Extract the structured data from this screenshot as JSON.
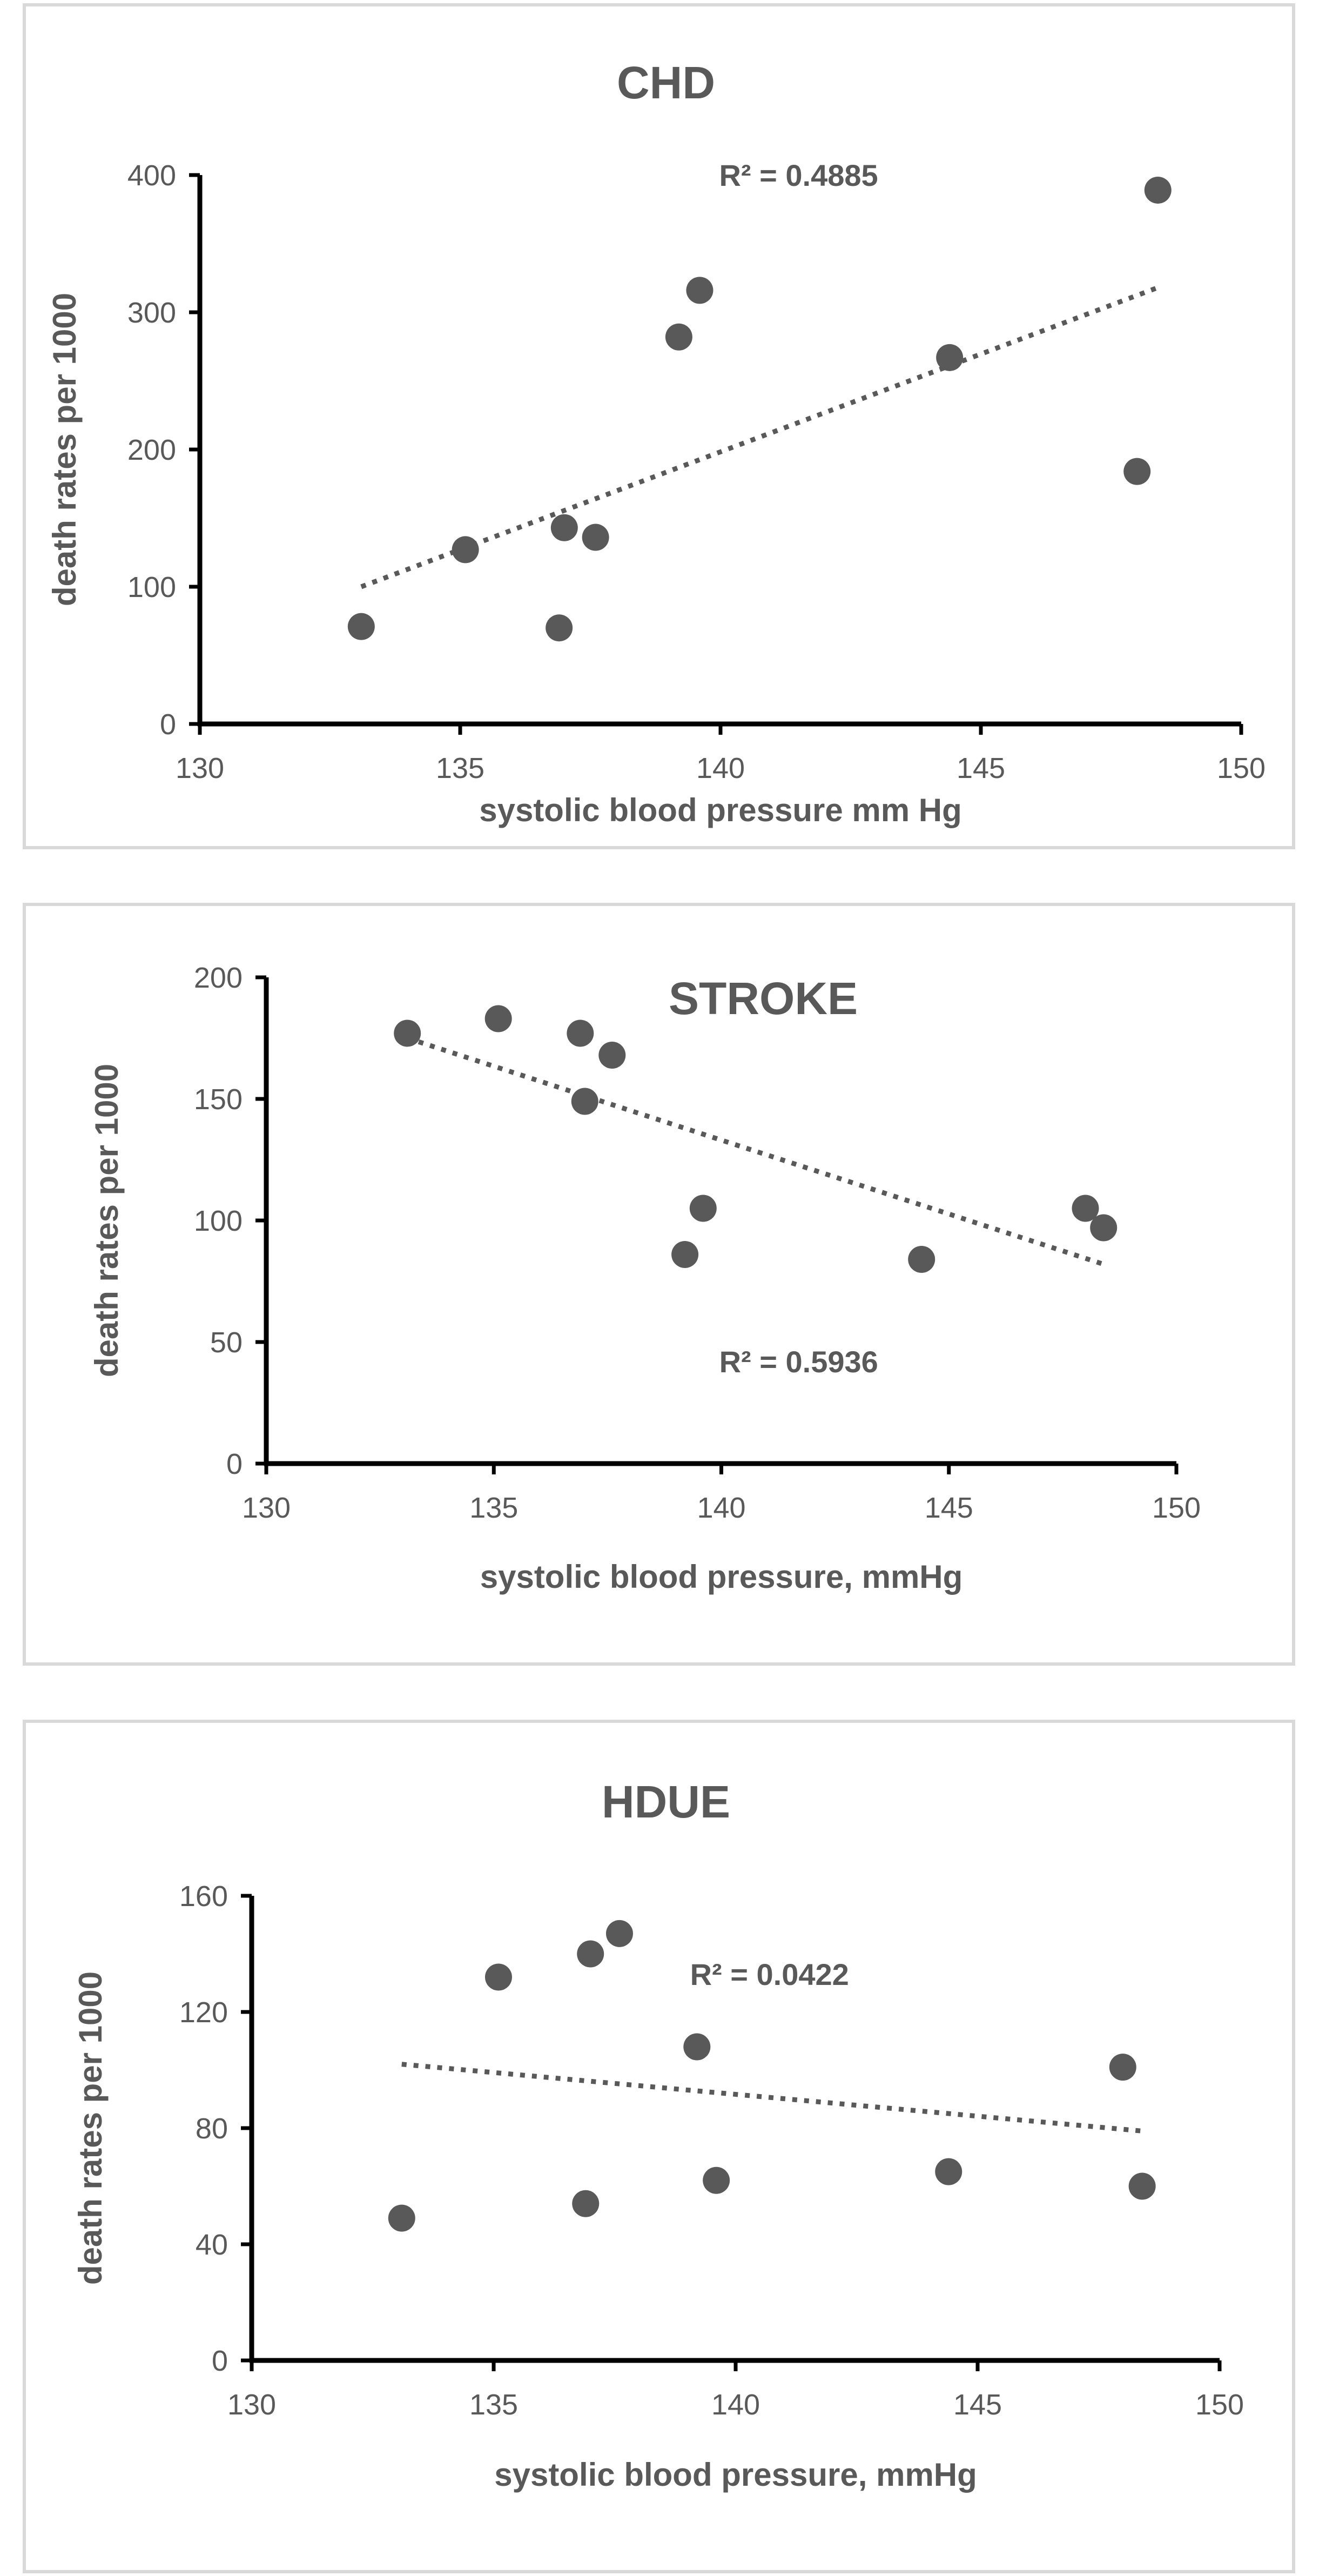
{
  "chart_data": [
    {
      "type": "scatter",
      "title": "CHD",
      "xlabel": "systolic blood pressure mm Hg",
      "ylabel": "death rates per 1000",
      "xlim": [
        130,
        150
      ],
      "ylim": [
        0,
        400
      ],
      "xticks": [
        130,
        135,
        140,
        145,
        150
      ],
      "yticks": [
        0,
        100,
        200,
        300,
        400
      ],
      "series": [
        {
          "name": "CHD",
          "x": [
            133.1,
            135.1,
            136.9,
            137.0,
            137.6,
            139.2,
            139.6,
            144.4,
            148.0,
            148.4
          ],
          "y": [
            71,
            127,
            70,
            143,
            136,
            282,
            316,
            267,
            184,
            389
          ]
        }
      ],
      "trendline": {
        "style": "dotted",
        "x": [
          133.1,
          148.4
        ],
        "y": [
          100,
          318
        ]
      },
      "r_squared_label": "R² = 0.4885",
      "r_squared_anchor": [
        141.5,
        400
      ]
    },
    {
      "type": "scatter",
      "title": "STROKE",
      "xlabel": "systolic blood pressure, mmHg",
      "ylabel": "death rates per 1000",
      "xlim": [
        130,
        150
      ],
      "ylim": [
        0,
        200
      ],
      "xticks": [
        130,
        135,
        140,
        145,
        150
      ],
      "yticks": [
        0,
        50,
        100,
        150,
        200
      ],
      "series": [
        {
          "name": "STROKE",
          "x": [
            133.1,
            135.1,
            136.9,
            137.0,
            137.6,
            139.2,
            139.6,
            144.4,
            148.0,
            148.4
          ],
          "y": [
            177,
            183,
            177,
            149,
            168,
            86,
            105,
            84,
            105,
            97
          ]
        }
      ],
      "trendline": {
        "style": "dotted",
        "x": [
          133.1,
          148.4
        ],
        "y": [
          175,
          82
        ]
      },
      "r_squared_label": "R² = 0.5936",
      "r_squared_anchor": [
        141.7,
        42
      ]
    },
    {
      "type": "scatter",
      "title": "HDUE",
      "xlabel": "systolic blood pressure, mmHg",
      "ylabel": "death rates per 1000",
      "xlim": [
        130,
        150
      ],
      "ylim": [
        0,
        160
      ],
      "xticks": [
        130,
        135,
        140,
        145,
        150
      ],
      "yticks": [
        0,
        40,
        80,
        120,
        160
      ],
      "series": [
        {
          "name": "HDUE",
          "x": [
            133.1,
            135.1,
            136.9,
            137.0,
            137.6,
            139.2,
            139.6,
            144.4,
            148.0,
            148.4
          ],
          "y": [
            49,
            132,
            54,
            140,
            147,
            108,
            62,
            65,
            101,
            60
          ]
        }
      ],
      "trendline": {
        "style": "dotted",
        "x": [
          133.1,
          148.4
        ],
        "y": [
          102,
          79
        ]
      },
      "r_squared_label": "R² = 0.0422",
      "r_squared_anchor": [
        140.7,
        133
      ]
    }
  ]
}
